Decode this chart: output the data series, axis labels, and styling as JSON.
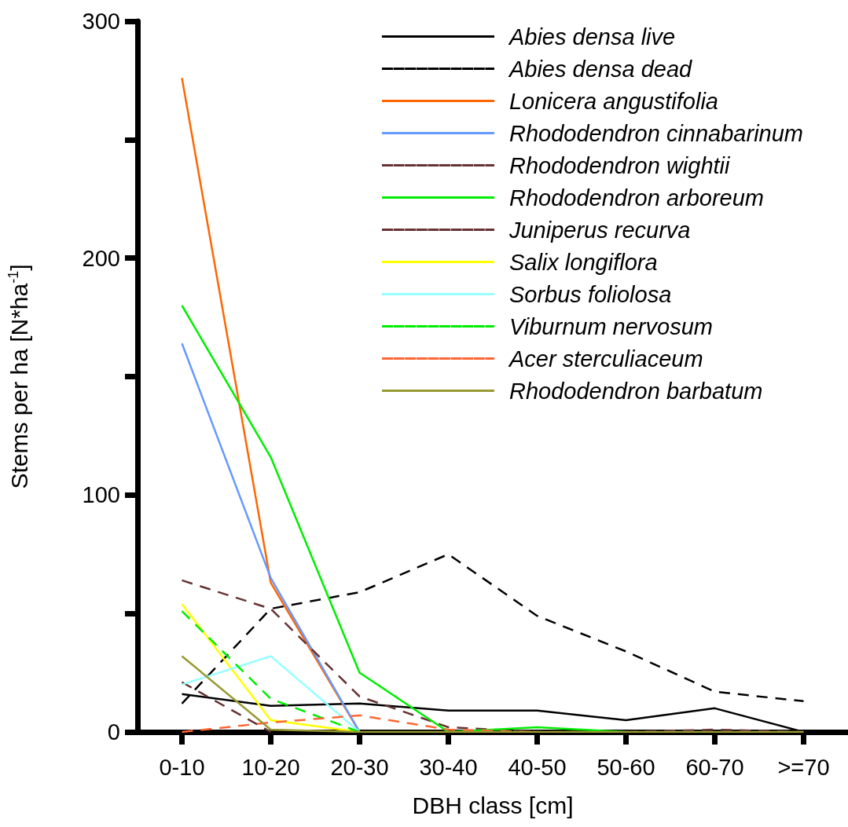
{
  "chart_data": {
    "type": "line",
    "xlabel": "DBH class [cm]",
    "ylabel": "Stems per ha [N*ha$^{-1}$]",
    "categories": [
      "0-10",
      "10-20",
      "20-30",
      "30-40",
      "40-50",
      "50-60",
      "60-70",
      ">=70"
    ],
    "ylim": [
      0,
      300
    ],
    "yticks": [
      0,
      {
        "value": 50,
        "label": null
      },
      100,
      {
        "value": 150,
        "label": null
      },
      200,
      {
        "value": 250,
        "label": null
      },
      300
    ],
    "grid": false,
    "legend": "top right",
    "marker": "none",
    "series": [
      {
        "name": "Abies densa live",
        "color": "#000000",
        "line_style": "solid",
        "values": [
          16,
          11,
          12,
          9,
          9,
          5,
          10,
          0
        ]
      },
      {
        "name": "Abies densa dead",
        "color": "#000000",
        "line_style": "dashed",
        "values": [
          12,
          52,
          59,
          75,
          49,
          34,
          17,
          13
        ]
      },
      {
        "name": "Lonicera angustifolia",
        "color": "#ff6600",
        "line_style": "solid",
        "values": [
          276,
          63,
          0,
          null,
          null,
          null,
          null,
          null
        ]
      },
      {
        "name": "Rhododendron cinnabarinum",
        "color": "#6699ff",
        "line_style": "solid",
        "values": [
          164,
          65,
          0,
          null,
          null,
          null,
          null,
          null
        ]
      },
      {
        "name": "Rhododendron wightii",
        "color": "#663333",
        "line_style": "dashed",
        "values": [
          64,
          52,
          15,
          2,
          0,
          0,
          1,
          0
        ]
      },
      {
        "name": "Rhododendron arboreum",
        "color": "#00ee00",
        "line_style": "solid",
        "values": [
          180,
          116,
          25,
          0,
          2,
          0,
          null,
          null
        ]
      },
      {
        "name": "Juniperus recurva",
        "color": "#663333",
        "line_style": "dashed",
        "values": [
          21,
          0,
          null,
          null,
          null,
          null,
          null,
          null
        ]
      },
      {
        "name": "Salix longiflora",
        "color": "#ffff00",
        "line_style": "solid",
        "values": [
          54,
          5,
          0,
          null,
          null,
          null,
          null,
          null
        ]
      },
      {
        "name": "Sorbus foliolosa",
        "color": "#99ffff",
        "line_style": "solid",
        "values": [
          20,
          32,
          0,
          null,
          null,
          null,
          null,
          null
        ]
      },
      {
        "name": "Viburnum nervosum",
        "color": "#00ee00",
        "line_style": "dashed",
        "values": [
          51,
          14,
          0,
          null,
          null,
          null,
          null,
          null
        ]
      },
      {
        "name": "Acer sterculiaceum",
        "color": "#ff6633",
        "line_style": "dashed",
        "values": [
          0,
          4,
          7,
          1,
          0,
          null,
          null,
          null
        ]
      },
      {
        "name": "Rhododendron barbatum",
        "color": "#999933",
        "line_style": "solid",
        "values": [
          32,
          1,
          0,
          0,
          0,
          0,
          0,
          0
        ]
      }
    ]
  }
}
